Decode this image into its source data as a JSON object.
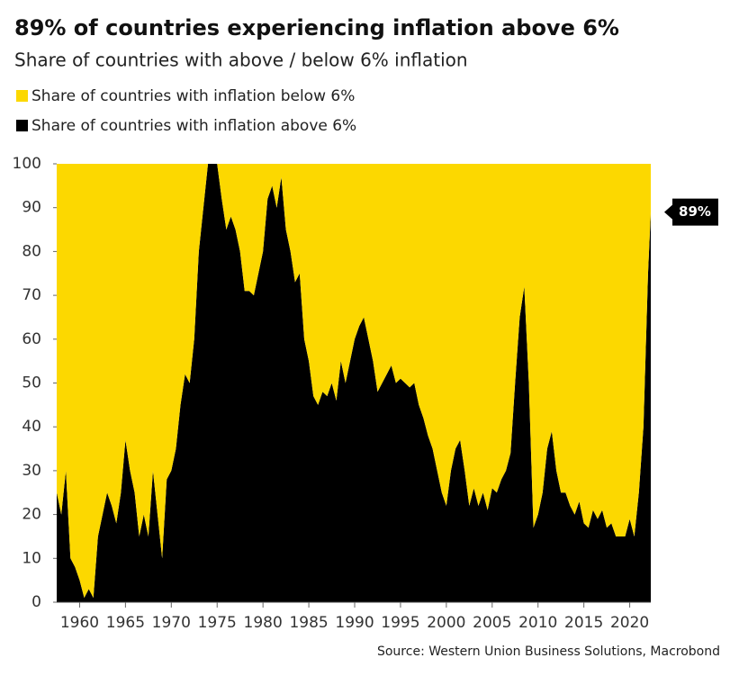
{
  "chart_data": {
    "type": "stacked_area",
    "title": "89% of countries experiencing inflation above 6%",
    "subtitle": "Share of countries with above / below 6% inflation",
    "source": "Source: Western Union Business Solutions, Macrobond",
    "annotation": "89%",
    "x": [
      1957.5,
      1958,
      1958.5,
      1959,
      1959.5,
      1960,
      1960.5,
      1961,
      1961.5,
      1962,
      1962.5,
      1963,
      1963.5,
      1964,
      1964.5,
      1965,
      1965.5,
      1966,
      1966.5,
      1967,
      1967.5,
      1968,
      1968.5,
      1969,
      1969.5,
      1970,
      1970.5,
      1971,
      1971.5,
      1972,
      1972.5,
      1973,
      1973.5,
      1974,
      1974.5,
      1975,
      1975.5,
      1976,
      1976.5,
      1977,
      1977.5,
      1978,
      1978.5,
      1979,
      1979.5,
      1980,
      1980.5,
      1981,
      1981.5,
      1982,
      1982.5,
      1983,
      1983.5,
      1984,
      1984.5,
      1985,
      1985.5,
      1986,
      1986.5,
      1987,
      1987.5,
      1988,
      1988.5,
      1989,
      1989.5,
      1990,
      1990.5,
      1991,
      1991.5,
      1992,
      1992.5,
      1993,
      1993.5,
      1994,
      1994.5,
      1995,
      1995.5,
      1996,
      1996.5,
      1997,
      1997.5,
      1998,
      1998.5,
      1999,
      1999.5,
      2000,
      2000.5,
      2001,
      2001.5,
      2002,
      2002.5,
      2003,
      2003.5,
      2004,
      2004.5,
      2005,
      2005.5,
      2006,
      2006.5,
      2007,
      2007.5,
      2008,
      2008.5,
      2009,
      2009.5,
      2010,
      2010.5,
      2011,
      2011.5,
      2012,
      2012.5,
      2013,
      2013.5,
      2014,
      2014.5,
      2015,
      2015.5,
      2016,
      2016.5,
      2017,
      2017.5,
      2018,
      2018.5,
      2019,
      2019.5,
      2020,
      2020.5,
      2021,
      2021.5,
      2022,
      2022.3
    ],
    "series": [
      {
        "name": "Share of countries with inflation above 6%",
        "color": "#000000",
        "values": [
          25,
          20,
          30,
          10,
          8,
          5,
          1,
          3,
          1,
          15,
          20,
          25,
          22,
          18,
          25,
          37,
          30,
          25,
          15,
          20,
          15,
          30,
          20,
          10,
          28,
          30,
          35,
          45,
          52,
          50,
          60,
          80,
          90,
          100,
          100,
          100,
          92,
          85,
          88,
          85,
          80,
          71,
          71,
          70,
          75,
          80,
          92,
          95,
          90,
          97,
          85,
          80,
          73,
          75,
          60,
          55,
          47,
          45,
          48,
          47,
          50,
          46,
          55,
          50,
          55,
          60,
          63,
          65,
          60,
          55,
          48,
          50,
          52,
          54,
          50,
          51,
          50,
          49,
          50,
          45,
          42,
          38,
          35,
          30,
          25,
          22,
          30,
          35,
          37,
          30,
          22,
          26,
          22,
          25,
          21,
          26,
          25,
          28,
          30,
          34,
          50,
          65,
          72,
          50,
          17,
          20,
          25,
          35,
          39,
          30,
          25,
          25,
          22,
          20,
          23,
          18,
          17,
          21,
          19,
          21,
          17,
          18,
          15,
          15,
          15,
          19,
          15,
          25,
          40,
          75,
          89
        ]
      },
      {
        "name": "Share of countries with inflation below 6%",
        "color": "#fcd800",
        "values": [
          75,
          80,
          70,
          90,
          92,
          95,
          99,
          97,
          99,
          85,
          80,
          75,
          78,
          82,
          75,
          63,
          70,
          75,
          85,
          80,
          85,
          70,
          80,
          90,
          72,
          70,
          65,
          55,
          48,
          50,
          40,
          20,
          10,
          0,
          0,
          0,
          8,
          15,
          12,
          15,
          20,
          29,
          29,
          30,
          25,
          20,
          8,
          5,
          10,
          3,
          15,
          20,
          27,
          25,
          40,
          45,
          53,
          55,
          52,
          53,
          50,
          54,
          45,
          50,
          45,
          40,
          37,
          35,
          40,
          45,
          52,
          50,
          48,
          46,
          50,
          49,
          50,
          51,
          50,
          55,
          58,
          62,
          65,
          70,
          75,
          78,
          70,
          65,
          63,
          70,
          78,
          74,
          78,
          75,
          79,
          74,
          75,
          72,
          70,
          66,
          50,
          35,
          28,
          50,
          83,
          80,
          75,
          65,
          61,
          70,
          75,
          75,
          78,
          80,
          77,
          82,
          83,
          79,
          81,
          79,
          83,
          82,
          85,
          85,
          85,
          81,
          85,
          75,
          60,
          25,
          11
        ]
      }
    ],
    "xlim": [
      1957.5,
      2022.3
    ],
    "ylim": [
      0,
      100
    ],
    "xticks": [
      1960,
      1965,
      1970,
      1975,
      1980,
      1985,
      1990,
      1995,
      2000,
      2005,
      2010,
      2015,
      2020
    ],
    "yticks": [
      0,
      10,
      20,
      30,
      40,
      50,
      60,
      70,
      80,
      90,
      100
    ]
  }
}
